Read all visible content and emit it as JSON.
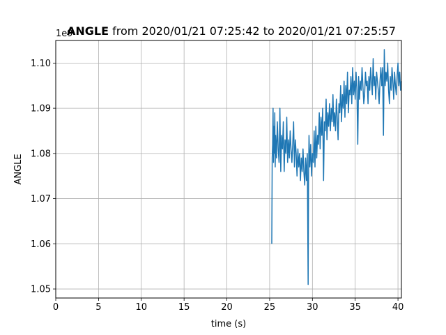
{
  "chart_data": {
    "type": "line",
    "title_bold": "ANGLE",
    "title_rest": " from 2020/01/21 07:25:42 to 2020/01/21 07:25:57",
    "xlabel": "time (s)",
    "ylabel": "ANGLE",
    "y_offset_label": "1e9",
    "xlim": [
      0,
      40.4
    ],
    "ylim": [
      1.048,
      1.105
    ],
    "x_ticks": [
      0,
      5,
      10,
      15,
      20,
      25,
      30,
      35,
      40
    ],
    "x_tick_labels": [
      "0",
      "5",
      "10",
      "15",
      "20",
      "25",
      "30",
      "35",
      "40"
    ],
    "y_ticks": [
      1.05,
      1.06,
      1.07,
      1.08,
      1.09,
      1.1
    ],
    "y_tick_labels": [
      "1.05",
      "1.06",
      "1.07",
      "1.08",
      "1.09",
      "1.10"
    ],
    "grid": true,
    "series": [
      {
        "name": "",
        "color": "#1f77b4",
        "x": [
          25.25,
          25.3,
          25.35,
          25.4,
          25.45,
          25.5,
          25.55,
          25.6,
          25.65,
          25.7,
          25.8,
          25.9,
          26.0,
          26.1,
          26.2,
          26.3,
          26.4,
          26.5,
          26.6,
          26.7,
          26.8,
          26.9,
          27.0,
          27.1,
          27.2,
          27.3,
          27.4,
          27.5,
          27.6,
          27.7,
          27.8,
          27.9,
          28.0,
          28.1,
          28.2,
          28.3,
          28.4,
          28.5,
          28.6,
          28.7,
          28.8,
          28.9,
          29.0,
          29.1,
          29.2,
          29.3,
          29.4,
          29.5,
          29.55,
          29.6,
          29.7,
          29.8,
          29.9,
          30.0,
          30.1,
          30.2,
          30.3,
          30.4,
          30.5,
          30.6,
          30.7,
          30.8,
          30.9,
          31.0,
          31.1,
          31.2,
          31.3,
          31.4,
          31.5,
          31.6,
          31.7,
          31.8,
          31.9,
          32.0,
          32.1,
          32.2,
          32.3,
          32.4,
          32.5,
          32.6,
          32.7,
          32.8,
          32.9,
          33.0,
          33.1,
          33.2,
          33.3,
          33.4,
          33.5,
          33.6,
          33.7,
          33.8,
          33.9,
          34.0,
          34.1,
          34.2,
          34.3,
          34.4,
          34.5,
          34.6,
          34.7,
          34.8,
          34.9,
          35.0,
          35.1,
          35.2,
          35.3,
          35.4,
          35.5,
          35.6,
          35.7,
          35.8,
          35.9,
          36.0,
          36.1,
          36.2,
          36.3,
          36.4,
          36.5,
          36.6,
          36.7,
          36.8,
          36.9,
          37.0,
          37.1,
          37.2,
          37.3,
          37.4,
          37.5,
          37.6,
          37.7,
          37.8,
          37.9,
          38.0,
          38.1,
          38.2,
          38.3,
          38.4,
          38.5,
          38.6,
          38.7,
          38.8,
          38.9,
          39.0,
          39.1,
          39.2,
          39.3,
          39.4,
          39.5,
          39.6,
          39.7,
          39.8,
          39.9,
          40.0,
          40.1,
          40.2,
          40.3,
          40.4
        ],
        "y": [
          1.06,
          1.079,
          1.082,
          1.09,
          1.078,
          1.086,
          1.08,
          1.089,
          1.077,
          1.084,
          1.079,
          1.087,
          1.081,
          1.078,
          1.09,
          1.076,
          1.084,
          1.081,
          1.087,
          1.076,
          1.083,
          1.08,
          1.088,
          1.078,
          1.083,
          1.079,
          1.085,
          1.081,
          1.078,
          1.082,
          1.087,
          1.077,
          1.083,
          1.08,
          1.075,
          1.081,
          1.077,
          1.08,
          1.074,
          1.079,
          1.076,
          1.081,
          1.076,
          1.073,
          1.079,
          1.074,
          1.08,
          1.051,
          1.075,
          1.084,
          1.077,
          1.082,
          1.075,
          1.08,
          1.078,
          1.085,
          1.077,
          1.086,
          1.079,
          1.084,
          1.082,
          1.089,
          1.081,
          1.088,
          1.084,
          1.09,
          1.074,
          1.087,
          1.085,
          1.092,
          1.083,
          1.089,
          1.086,
          1.091,
          1.085,
          1.09,
          1.087,
          1.093,
          1.086,
          1.089,
          1.085,
          1.092,
          1.088,
          1.083,
          1.091,
          1.089,
          1.095,
          1.087,
          1.093,
          1.09,
          1.096,
          1.088,
          1.095,
          1.091,
          1.098,
          1.089,
          1.094,
          1.093,
          1.097,
          1.091,
          1.099,
          1.093,
          1.096,
          1.092,
          1.098,
          1.094,
          1.082,
          1.097,
          1.092,
          1.096,
          1.094,
          1.099,
          1.095,
          1.091,
          1.093,
          1.098,
          1.095,
          1.096,
          1.091,
          1.097,
          1.094,
          1.099,
          1.096,
          1.093,
          1.101,
          1.095,
          1.097,
          1.092,
          1.098,
          1.096,
          1.094,
          1.091,
          1.096,
          1.099,
          1.095,
          1.099,
          1.084,
          1.103,
          1.095,
          1.098,
          1.096,
          1.1,
          1.094,
          1.091,
          1.097,
          1.094,
          1.099,
          1.096,
          1.092,
          1.098,
          1.095,
          1.093,
          1.097,
          1.1,
          1.095,
          1.098,
          1.094,
          1.096
        ]
      }
    ]
  }
}
